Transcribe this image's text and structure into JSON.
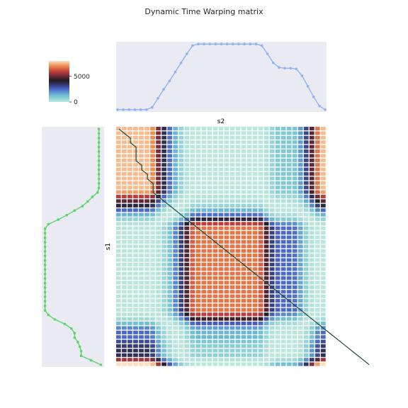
{
  "chart_data": {
    "type": "heatmap",
    "title": "Dynamic Time Warping matrix",
    "xlabel": "s2",
    "ylabel": "s1",
    "colorbar": {
      "ticks": [
        0,
        5000
      ],
      "tick_labels": [
        "0",
        "5000"
      ],
      "range": [
        0,
        8000
      ],
      "colormap": "icefire"
    },
    "s2": [
      0,
      0,
      0,
      0,
      0,
      0,
      3,
      15,
      27,
      38,
      50,
      62,
      74,
      85,
      87,
      87,
      87,
      87,
      87,
      87,
      87,
      87,
      87,
      87,
      87,
      85,
      74,
      62,
      56,
      55,
      55,
      54,
      45,
      31,
      17,
      5,
      0
    ],
    "s1": [
      87,
      87,
      87,
      87,
      87,
      87,
      87,
      87,
      87,
      87,
      87,
      87,
      87,
      87,
      85,
      77,
      70,
      62,
      50,
      38,
      25,
      10,
      5,
      5,
      5,
      5,
      5,
      5,
      5,
      5,
      5,
      5,
      5,
      5,
      5,
      5,
      5,
      5,
      5,
      5,
      5,
      10,
      20,
      35,
      45,
      50,
      50,
      55,
      58,
      60,
      60,
      75,
      90
    ],
    "warping_path": [
      [
        0,
        0
      ],
      [
        1,
        1
      ],
      [
        2,
        2
      ],
      [
        3,
        2
      ],
      [
        4,
        3
      ],
      [
        5,
        3
      ],
      [
        6,
        3
      ],
      [
        7,
        3
      ],
      [
        8,
        4
      ],
      [
        9,
        4
      ],
      [
        10,
        5
      ],
      [
        11,
        5
      ],
      [
        12,
        6
      ],
      [
        13,
        6
      ],
      [
        14,
        6
      ],
      [
        15,
        7
      ],
      [
        16,
        8
      ],
      [
        17,
        9
      ],
      [
        18,
        10
      ],
      [
        19,
        11
      ],
      [
        20,
        12
      ],
      [
        21,
        13
      ],
      [
        22,
        14
      ],
      [
        23,
        15
      ],
      [
        24,
        16
      ],
      [
        25,
        17
      ],
      [
        26,
        18
      ],
      [
        27,
        19
      ],
      [
        28,
        20
      ],
      [
        29,
        21
      ],
      [
        30,
        22
      ],
      [
        31,
        23
      ],
      [
        32,
        24
      ],
      [
        33,
        25
      ],
      [
        34,
        26
      ],
      [
        35,
        27
      ],
      [
        36,
        28
      ],
      [
        37,
        29
      ],
      [
        38,
        30
      ],
      [
        39,
        31
      ],
      [
        40,
        32
      ],
      [
        41,
        33
      ],
      [
        42,
        34
      ],
      [
        43,
        35
      ],
      [
        44,
        36
      ],
      [
        45,
        37
      ],
      [
        46,
        38
      ],
      [
        47,
        39
      ],
      [
        48,
        40
      ],
      [
        49,
        41
      ],
      [
        50,
        42
      ],
      [
        51,
        43
      ],
      [
        52,
        44
      ]
    ],
    "grid": true,
    "legend": "top-left colorbar"
  }
}
